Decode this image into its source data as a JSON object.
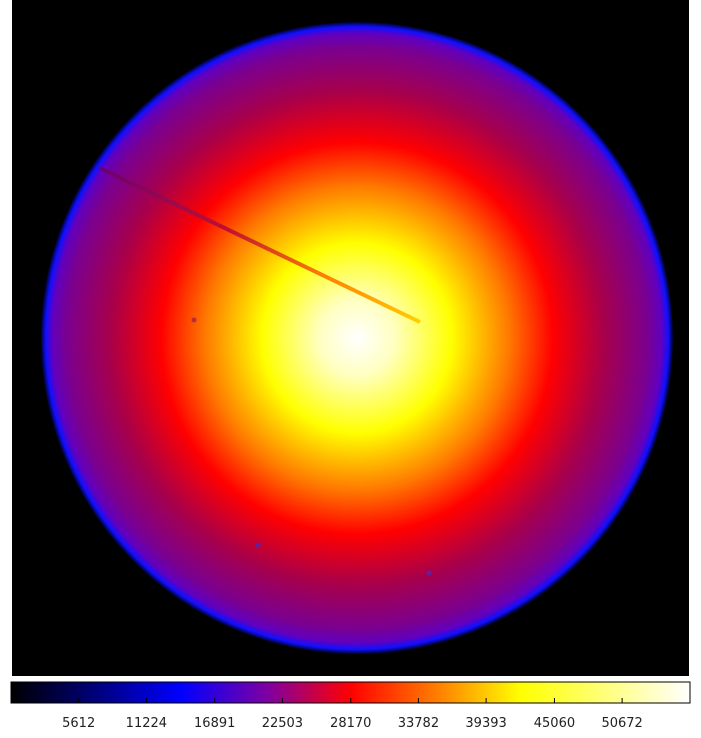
{
  "colorbar": {
    "range": [
      0,
      56300
    ],
    "ticks": [
      5612,
      11224,
      16891,
      22503,
      28170,
      33782,
      39393,
      45060,
      50672
    ]
  }
}
